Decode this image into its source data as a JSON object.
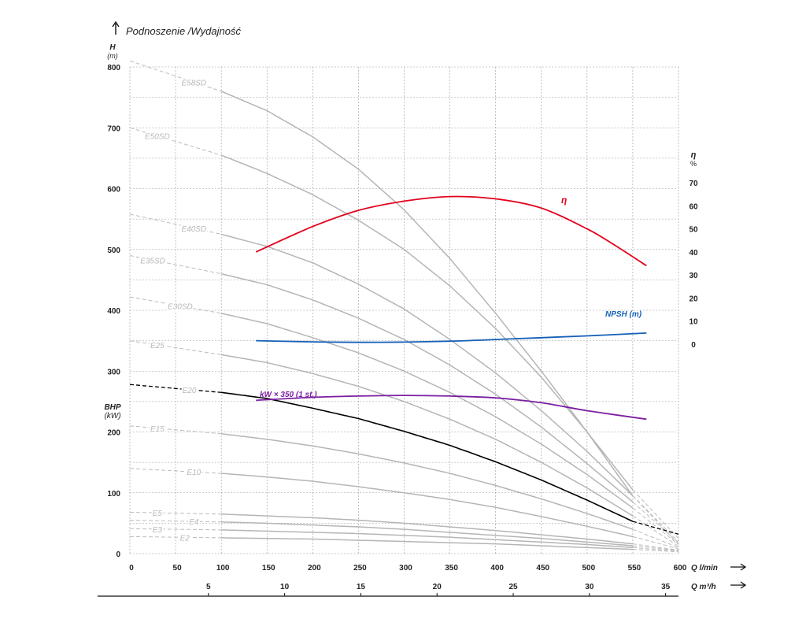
{
  "chart_data": {
    "type": "line",
    "title": "Podnoszenie /Wydajność",
    "left_axis": {
      "label": "H",
      "unit": "(m)",
      "ylim": [
        0,
        800
      ],
      "ticks": [
        "0",
        "100",
        "200",
        "300",
        "400",
        "500",
        "600",
        "700",
        "800"
      ]
    },
    "bhp_axis": {
      "label": "BHP",
      "unit": "(kW)"
    },
    "right_axis": {
      "label": "η",
      "unit": "%",
      "ylim": [
        0,
        70
      ],
      "ticks": [
        "0",
        "10",
        "20",
        "30",
        "40",
        "50",
        "60",
        "70"
      ]
    },
    "x_axis": {
      "label": "Q l/min",
      "xlim": [
        0,
        600
      ],
      "ticks": [
        "0",
        "50",
        "100",
        "150",
        "200",
        "250",
        "300",
        "350",
        "400",
        "450",
        "500",
        "550",
        "600"
      ]
    },
    "x_axis_secondary": {
      "label": "Q m³/h",
      "ticks": [
        "5",
        "10",
        "15",
        "20",
        "25",
        "30",
        "35"
      ]
    },
    "grid": true,
    "series": [
      {
        "name": "E58SD",
        "color": "#b5b5b5",
        "x": [
          0,
          100,
          150,
          200,
          250,
          300,
          350,
          400,
          450,
          500,
          550,
          600
        ],
        "y": [
          810,
          760,
          728,
          685,
          632,
          565,
          485,
          395,
          300,
          200,
          95,
          15
        ]
      },
      {
        "name": "E50SD",
        "color": "#b5b5b5",
        "x": [
          0,
          100,
          150,
          200,
          250,
          300,
          350,
          400,
          450,
          500,
          550,
          600
        ],
        "y": [
          700,
          655,
          625,
          590,
          548,
          500,
          440,
          370,
          290,
          200,
          105,
          25
        ]
      },
      {
        "name": "E40SD",
        "color": "#b5b5b5",
        "x": [
          0,
          100,
          150,
          200,
          250,
          300,
          350,
          400,
          450,
          500,
          550,
          600
        ],
        "y": [
          558,
          525,
          505,
          478,
          443,
          402,
          352,
          297,
          235,
          168,
          95,
          20
        ]
      },
      {
        "name": "E35SD",
        "color": "#b5b5b5",
        "x": [
          0,
          100,
          150,
          200,
          250,
          300,
          350,
          400,
          450,
          500,
          550,
          600
        ],
        "y": [
          490,
          460,
          442,
          417,
          387,
          352,
          310,
          262,
          208,
          148,
          85,
          18
        ]
      },
      {
        "name": "E30SD",
        "color": "#b5b5b5",
        "x": [
          0,
          100,
          150,
          200,
          250,
          300,
          350,
          400,
          450,
          500,
          550,
          600
        ],
        "y": [
          422,
          395,
          378,
          355,
          330,
          300,
          265,
          225,
          180,
          130,
          75,
          15
        ]
      },
      {
        "name": "E25",
        "color": "#b5b5b5",
        "x": [
          0,
          100,
          150,
          200,
          250,
          300,
          350,
          400,
          450,
          500,
          550,
          600
        ],
        "y": [
          350,
          327,
          314,
          296,
          275,
          250,
          221,
          188,
          150,
          108,
          62,
          12
        ]
      },
      {
        "name": "E20",
        "color": "#000000",
        "x": [
          0,
          100,
          150,
          200,
          250,
          300,
          350,
          400,
          450,
          500,
          550,
          600
        ],
        "y": [
          278,
          265,
          255,
          239,
          222,
          201,
          178,
          151,
          121,
          88,
          53,
          32
        ]
      },
      {
        "name": "E15",
        "color": "#b5b5b5",
        "x": [
          0,
          100,
          150,
          200,
          250,
          300,
          350,
          400,
          450,
          500,
          550,
          600
        ],
        "y": [
          210,
          197,
          188,
          177,
          164,
          149,
          132,
          112,
          90,
          66,
          40,
          10
        ]
      },
      {
        "name": "E10",
        "color": "#b5b5b5",
        "x": [
          0,
          100,
          150,
          200,
          250,
          300,
          350,
          400,
          450,
          500,
          550,
          600
        ],
        "y": [
          140,
          132,
          126,
          119,
          110,
          100,
          89,
          76,
          61,
          45,
          28,
          8
        ]
      },
      {
        "name": "E5",
        "color": "#b5b5b5",
        "x": [
          0,
          100,
          150,
          200,
          250,
          300,
          350,
          400,
          450,
          500,
          550,
          600
        ],
        "y": [
          68,
          65,
          62,
          59,
          55,
          50,
          44,
          38,
          31,
          24,
          16,
          6
        ]
      },
      {
        "name": "E4",
        "color": "#b5b5b5",
        "x": [
          0,
          100,
          150,
          200,
          250,
          300,
          350,
          400,
          450,
          500,
          550,
          600
        ],
        "y": [
          55,
          52,
          50,
          47,
          44,
          40,
          35,
          30,
          25,
          19,
          13,
          5
        ]
      },
      {
        "name": "E3",
        "color": "#b5b5b5",
        "x": [
          0,
          100,
          150,
          200,
          250,
          300,
          350,
          400,
          450,
          500,
          550,
          600
        ],
        "y": [
          41,
          39,
          37,
          35,
          33,
          30,
          27,
          23,
          19,
          15,
          10,
          4
        ]
      },
      {
        "name": "E2",
        "color": "#b5b5b5",
        "x": [
          0,
          100,
          150,
          200,
          250,
          300,
          350,
          400,
          450,
          500,
          550,
          600
        ],
        "y": [
          28,
          26,
          25,
          24,
          22,
          20,
          18,
          16,
          13,
          10,
          7,
          3
        ]
      },
      {
        "name": "η",
        "color": "#e3001b",
        "axis": "right",
        "x": [
          138,
          200,
          250,
          300,
          350,
          400,
          450,
          500,
          530,
          565
        ],
        "y": [
          40,
          51,
          58,
          62,
          64,
          63,
          59,
          50,
          43,
          34
        ]
      },
      {
        "name": "NPSH (m)",
        "color": "#1560b8",
        "axis": "right",
        "x": [
          138,
          200,
          250,
          300,
          350,
          400,
          450,
          500,
          565
        ],
        "y": [
          1.5,
          1,
          0.8,
          0.9,
          1.3,
          2,
          2.8,
          3.6,
          4.8
        ]
      },
      {
        "name": "kW × 350 (1 st.)",
        "color": "#7b1fa2",
        "axis": "left",
        "x": [
          138,
          200,
          250,
          300,
          350,
          400,
          450,
          500,
          565
        ],
        "y": [
          252,
          257,
          259,
          260,
          259,
          256,
          248,
          235,
          221
        ]
      }
    ],
    "annotations": [
      {
        "text": "η",
        "color": "#e3001b"
      },
      {
        "text": "NPSH (m)",
        "color": "#1560b8"
      },
      {
        "text": "kW × 350 (1 st.)",
        "color": "#7b1fa2"
      }
    ]
  },
  "icons": [
    "arrow-up-icon",
    "arrow-right-icon"
  ]
}
